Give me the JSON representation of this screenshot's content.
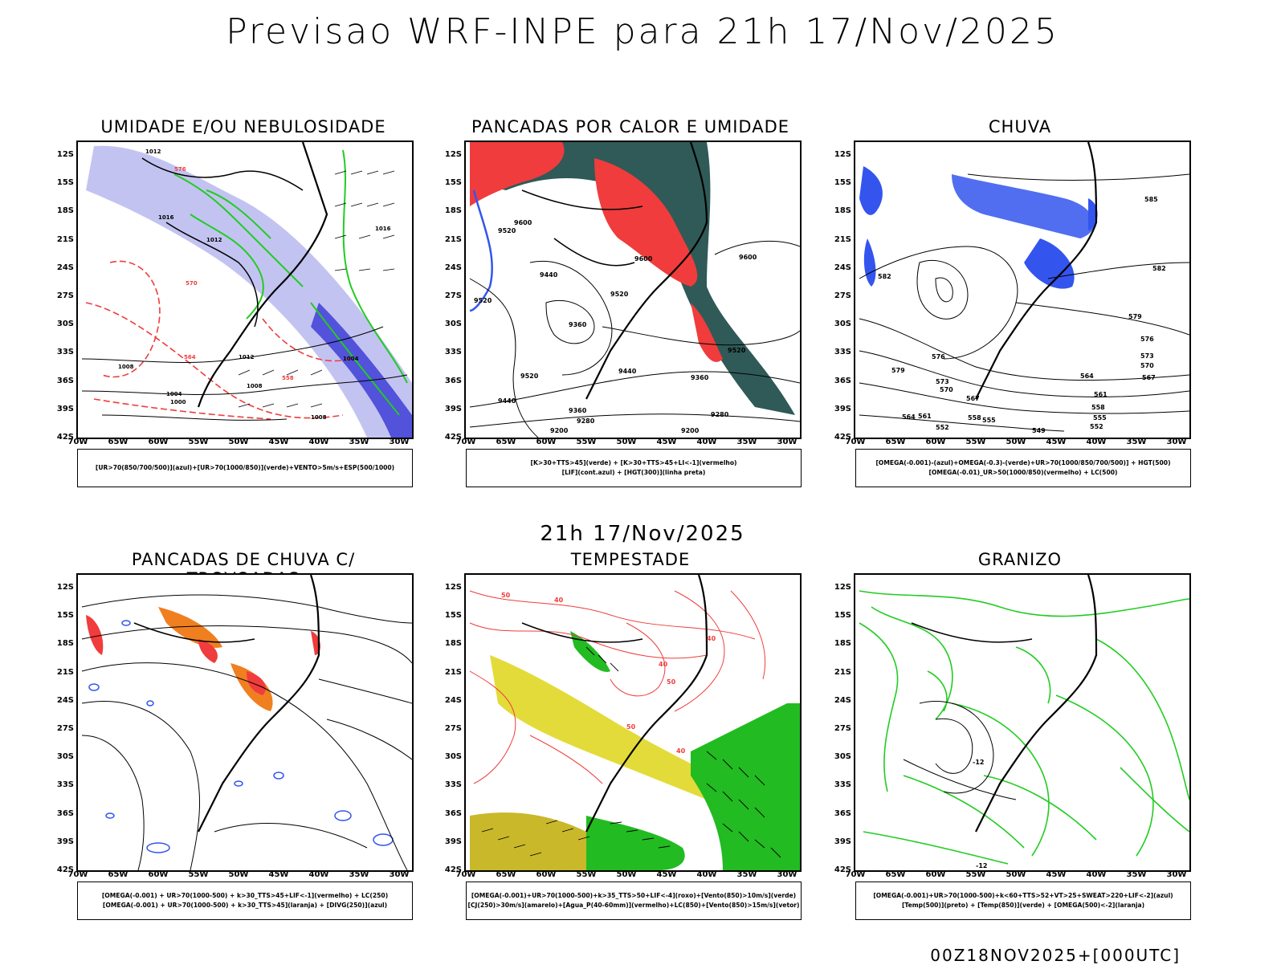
{
  "title": "Previsao WRF-INPE  para 21h 17/Nov/2025",
  "mid_time": "21h 17/Nov/2025",
  "footer": "00Z18NOV2025+[000UTC]",
  "lat_labels": [
    "12S",
    "15S",
    "18S",
    "21S",
    "24S",
    "27S",
    "30S",
    "33S",
    "36S",
    "39S",
    "42S"
  ],
  "lon_labels": [
    "70W",
    "65W",
    "60W",
    "55W",
    "50W",
    "45W",
    "40W",
    "35W",
    "30W"
  ],
  "colors": {
    "red": "#f03c3c",
    "green": "#22cc22",
    "blue": "#3355ee",
    "lavender": "#b8b8f0",
    "darkteal": "#2f5a58",
    "yellow": "#e3db3a",
    "orange": "#f07f20"
  },
  "panels": [
    {
      "id": "umidade",
      "title": "UMIDADE E/OU NEBULOSIDADE",
      "legend": [
        "[UR>70(850/700/500)](azul)+[UR>70(1000/850)](verde)+VENTO>5m/s+ESP(500/1000)"
      ],
      "contour_labels": [
        "1012",
        "1016",
        "1012",
        "1008",
        "1004",
        "1000",
        "1008",
        "1012",
        "1016",
        "1004",
        "1008",
        "576",
        "570",
        "564",
        "558"
      ]
    },
    {
      "id": "pancadas",
      "title": "PANCADAS POR CALOR E UMIDADE",
      "legend": [
        "[K>30+TTS>45](verde) + [K>30+TTS>45+LI<-1](vermelho)",
        "[LIF](cont.azul) + [HGT(300)](linha preta)"
      ],
      "contour_labels": [
        "9600",
        "9520",
        "9440",
        "9520",
        "9360",
        "9520",
        "9440",
        "9360",
        "9280",
        "9200",
        "9600",
        "9520",
        "9600",
        "9520",
        "9440",
        "9360",
        "9280",
        "9200"
      ]
    },
    {
      "id": "chuva",
      "title": "CHUVA",
      "legend": [
        "[OMEGA(-0.001)-(azul)+OMEGA(-0.3)-(verde)+UR>70(1000/850/700/500)] + HGT(500)",
        "[OMEGA(-0.01)_UR>50(1000/850)(vermelho) + LC(500)"
      ],
      "contour_labels": [
        "585",
        "582",
        "579",
        "576",
        "573",
        "570",
        "567",
        "564",
        "561",
        "558",
        "555",
        "552",
        "549",
        "582",
        "579",
        "576",
        "573",
        "570",
        "567",
        "564",
        "561",
        "558",
        "555",
        "552"
      ]
    },
    {
      "id": "trovoadas",
      "title": "PANCADAS DE CHUVA C/ TROVOADAS",
      "legend": [
        "[OMEGA(-0.001) + UR>70(1000-500) + k>30_TTS>45+LIF<-1](vermelho) + LC(250)",
        "[OMEGA(-0.001) + UR>70(1000-500) + k>30_TTS>45](laranja) + [DIVG(250)](azul)"
      ],
      "contour_labels": []
    },
    {
      "id": "tempestade",
      "title": "TEMPESTADE",
      "legend": [
        "[OMEGA(-0.001)+UR>70(1000-500)+k>35_TTS>50+LIF<-4](roxo)+[Vento(850)>10m/s](verde)",
        "[CJ(250)>30m/s](amarelo)+[Agua_P(40-60mm)](vermelho)+LC(850)+[Vento(850)>15m/s](vetor)"
      ],
      "contour_labels": [
        "50",
        "40",
        "40",
        "50",
        "40",
        "50",
        "40"
      ]
    },
    {
      "id": "granizo",
      "title": "GRANIZO",
      "legend": [
        "[OMEGA(-0.001)+UR>70(1000-500)+k<60+TTS>52+VT>25+SWEAT>220+LIF<-2](azul)",
        "[Temp(500)](preto) + [Temp(850)](verde) + [OMEGA(500)<-2](laranja)"
      ],
      "contour_labels": [
        "-12",
        "-12"
      ]
    }
  ]
}
